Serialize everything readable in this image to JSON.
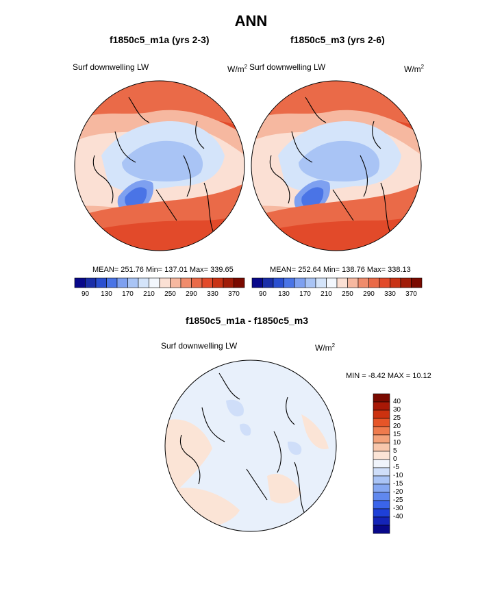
{
  "title": "ANN",
  "panels": [
    {
      "id": "left",
      "title": "f1850c5_m1a (yrs 2-3)",
      "variable": "Surf downwelling LW",
      "units_base": "W/m",
      "units_exp": "2",
      "stats": "MEAN= 251.76  Min= 137.01  Max= 339.65"
    },
    {
      "id": "right",
      "title": "f1850c5_m3 (yrs 2-6)",
      "variable": "Surf downwelling LW",
      "units_base": "W/m",
      "units_exp": "2",
      "stats": "MEAN= 252.64  Min= 138.76  Max= 338.13"
    },
    {
      "id": "diff",
      "title": "f1850c5_m1a - f1850c5_m3",
      "variable": "Surf downwelling LW",
      "units_base": "W/m",
      "units_exp": "2",
      "stats": "MIN =  -8.42 MAX =  10.12"
    }
  ],
  "colorbar_abs": {
    "colors": [
      "#08088a",
      "#1a2ea8",
      "#2a4fd0",
      "#4a74e6",
      "#7ea0f0",
      "#a9c4f5",
      "#d4e4fa",
      "#f3f7fd",
      "#fbe0d4",
      "#f6b8a0",
      "#f08c6c",
      "#ea6a48",
      "#e24a2a",
      "#c83214",
      "#a01c08",
      "#7a0a00"
    ],
    "ticks": [
      "90",
      "130",
      "170",
      "210",
      "250",
      "290",
      "330",
      "370"
    ]
  },
  "colorbar_diff": {
    "colors": [
      "#08088a",
      "#1424b8",
      "#1e40d8",
      "#3a64ea",
      "#6088ee",
      "#86a8f2",
      "#aac4f6",
      "#cfdef9",
      "#f0f4fb",
      "#fbe4d6",
      "#f8c7ac",
      "#f4a27a",
      "#ef7b4d",
      "#e65528",
      "#cc3210",
      "#a81806",
      "#7a0a00"
    ],
    "ticks": [
      "40",
      "30",
      "25",
      "20",
      "15",
      "10",
      "5",
      "0",
      "-5",
      "-10",
      "-15",
      "-20",
      "-25",
      "-30",
      "-40"
    ]
  },
  "chart_data": [
    {
      "type": "heatmap",
      "title": "f1850c5_m1a (yrs 2-3)",
      "projection": "polar stereographic (north)",
      "variable": "Surf downwelling LW",
      "units": "W/m2",
      "mean": 251.76,
      "min": 137.01,
      "max": 339.65,
      "contour_levels": [
        90,
        130,
        170,
        210,
        250,
        290,
        330,
        370
      ]
    },
    {
      "type": "heatmap",
      "title": "f1850c5_m3 (yrs 2-6)",
      "projection": "polar stereographic (north)",
      "variable": "Surf downwelling LW",
      "units": "W/m2",
      "mean": 252.64,
      "min": 138.76,
      "max": 338.13,
      "contour_levels": [
        90,
        130,
        170,
        210,
        250,
        290,
        330,
        370
      ]
    },
    {
      "type": "heatmap",
      "title": "f1850c5_m1a - f1850c5_m3",
      "projection": "polar stereographic (north)",
      "variable": "Surf downwelling LW",
      "units": "W/m2",
      "min": -8.42,
      "max": 10.12,
      "contour_levels": [
        -40,
        -30,
        -25,
        -20,
        -15,
        -10,
        -5,
        0,
        5,
        10,
        15,
        20,
        25,
        30,
        40
      ]
    }
  ]
}
